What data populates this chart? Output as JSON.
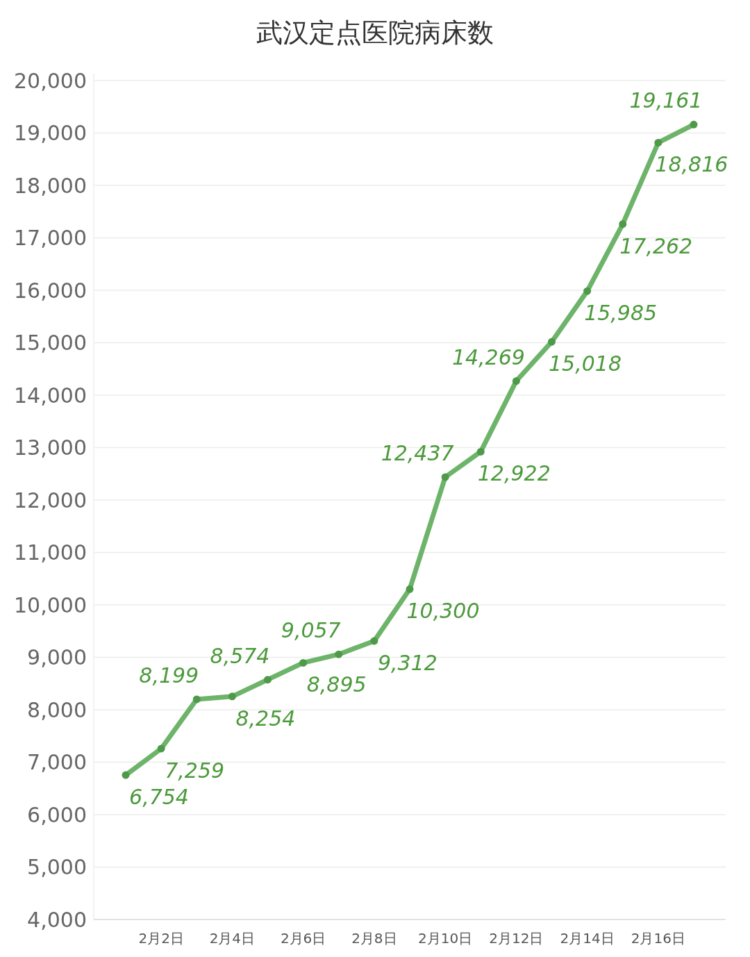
{
  "chart_data": {
    "type": "line",
    "title": "武汉定点医院病床数",
    "categories": [
      null,
      "2月2日",
      null,
      "2月4日",
      null,
      "2月6日",
      null,
      "2月8日",
      null,
      "2月10日",
      null,
      "2月12日",
      null,
      "2月14日",
      null,
      "2月16日",
      null
    ],
    "series": [
      {
        "color": "#6db46a",
        "values": [
          6754,
          7259,
          8199,
          8254,
          8574,
          8895,
          9057,
          9312,
          10300,
          12437,
          12922,
          14269,
          15018,
          15985,
          17262,
          18816,
          19161
        ],
        "value_labels": [
          "6,754",
          "7,259",
          "8,199",
          "8,254",
          "8,574",
          "8,895",
          "9,057",
          "9,312",
          "10,300",
          "12,437",
          "12,922",
          "14,269",
          "15,018",
          "15,985",
          "17,262",
          "18,816",
          "19,161"
        ]
      }
    ],
    "ylim": [
      4000,
      20000
    ],
    "yticks": [
      {
        "value": 4000,
        "label": "4,000"
      },
      {
        "value": 5000,
        "label": "5,000"
      },
      {
        "value": 6000,
        "label": "6,000"
      },
      {
        "value": 7000,
        "label": "7,000"
      },
      {
        "value": 8000,
        "label": "8,000"
      },
      {
        "value": 9000,
        "label": "9,000"
      },
      {
        "value": 10000,
        "label": "10,000"
      },
      {
        "value": 11000,
        "label": "11,000"
      },
      {
        "value": 12000,
        "label": "12,000"
      },
      {
        "value": 13000,
        "label": "13,000"
      },
      {
        "value": 14000,
        "label": "14,000"
      },
      {
        "value": 15000,
        "label": "15,000"
      },
      {
        "value": 16000,
        "label": "16,000"
      },
      {
        "value": 17000,
        "label": "17,000"
      },
      {
        "value": 18000,
        "label": "18,000"
      },
      {
        "value": 19000,
        "label": "19,000"
      },
      {
        "value": 20000,
        "label": "20,000"
      }
    ],
    "grid": "y",
    "marker": "circle",
    "line_style": "solid"
  }
}
